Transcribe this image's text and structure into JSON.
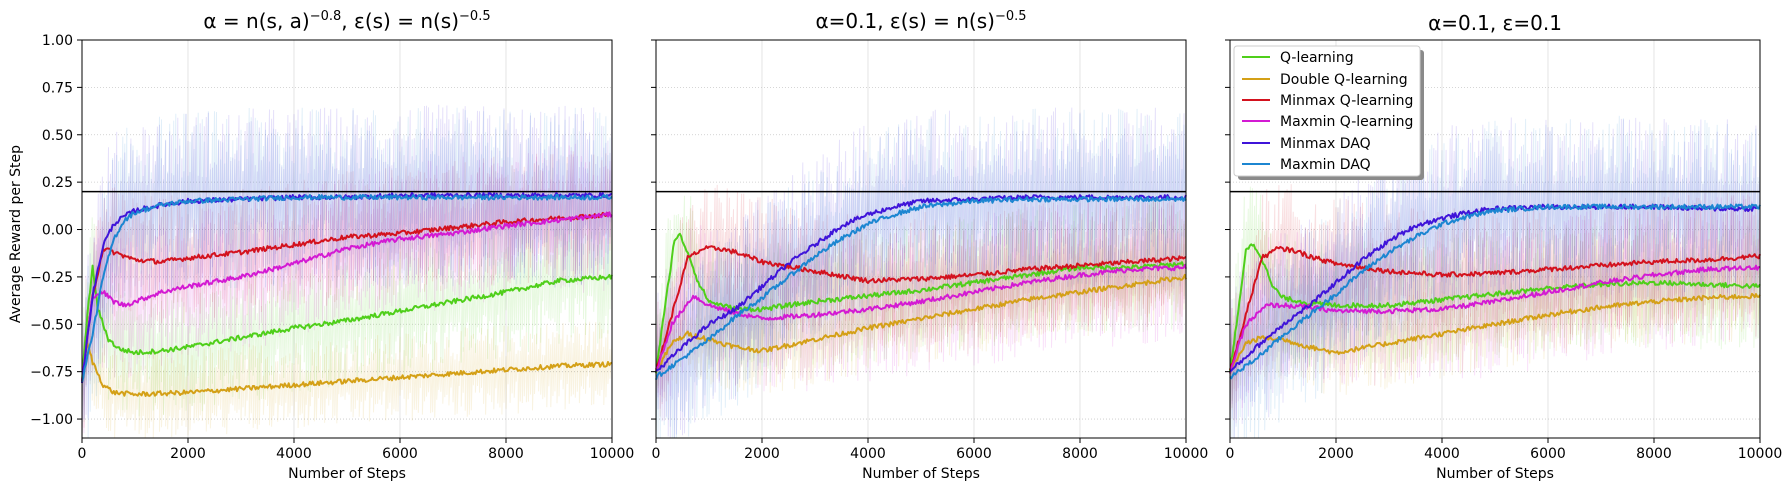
{
  "colors": {
    "q_learning": "#4fcf1a",
    "double_q_learning": "#d4a017",
    "minmax_q_learning": "#d3121e",
    "maxmin_q_learning": "#d31ad3",
    "minmax_daq": "#3f14d9",
    "maxmin_daq": "#1c86d1",
    "optimal_line": "#000000"
  },
  "legend": {
    "entries": [
      {
        "key": "q_learning",
        "label": "Q-learning"
      },
      {
        "key": "double_q_learning",
        "label": "Double Q-learning"
      },
      {
        "key": "minmax_q_learning",
        "label": "Minmax Q-learning"
      },
      {
        "key": "maxmin_q_learning",
        "label": "Maxmin Q-learning"
      },
      {
        "key": "minmax_daq",
        "label": "Minmax DAQ"
      },
      {
        "key": "maxmin_daq",
        "label": "Maxmin DAQ"
      }
    ]
  },
  "chart_data": [
    {
      "type": "line",
      "title": "α = n(s, a)^−0.8, ε(s) = n(s)^−0.5",
      "title_parts": {
        "a": "α = n(s, a)",
        "a_sup": "−0.8",
        "b": ", ε(s) = n(s)",
        "b_sup": "−0.5"
      },
      "xlabel": "Number of Steps",
      "ylabel": "Average Reward per Step",
      "xlim": [
        0,
        10000
      ],
      "ylim": [
        -1.1,
        1.0
      ],
      "xticks": [
        0,
        2000,
        4000,
        6000,
        8000,
        10000
      ],
      "xtick_labels": [
        "0",
        "2000",
        "4000",
        "6000",
        "8000",
        "10000"
      ],
      "yticks": [
        1.0,
        0.75,
        0.5,
        0.25,
        0.0,
        -0.25,
        -0.5,
        -0.75,
        -1.0
      ],
      "ytick_labels": [
        "1.00",
        "0.75",
        "0.50",
        "0.25",
        "0.00",
        "−0.25",
        "−0.50",
        "−0.75",
        "−1.00"
      ],
      "grid": true,
      "reference_line": 0.2,
      "series": [
        {
          "key": "q_learning",
          "name": "Q-learning",
          "x": [
            0,
            100,
            200,
            300,
            500,
            700,
            1000,
            1500,
            2000,
            3000,
            4000,
            5000,
            6000,
            7000,
            8000,
            9000,
            10000
          ],
          "y": [
            -0.8,
            -0.45,
            -0.2,
            -0.42,
            -0.58,
            -0.63,
            -0.65,
            -0.64,
            -0.62,
            -0.57,
            -0.52,
            -0.48,
            -0.43,
            -0.38,
            -0.33,
            -0.27,
            -0.25
          ]
        },
        {
          "key": "double_q_learning",
          "name": "Double Q-learning",
          "x": [
            0,
            100,
            200,
            400,
            600,
            1000,
            2000,
            3000,
            4000,
            5000,
            6000,
            7000,
            8000,
            9000,
            10000
          ],
          "y": [
            -0.8,
            -0.6,
            -0.7,
            -0.82,
            -0.86,
            -0.87,
            -0.86,
            -0.84,
            -0.82,
            -0.8,
            -0.78,
            -0.76,
            -0.74,
            -0.72,
            -0.71
          ]
        },
        {
          "key": "minmax_q_learning",
          "name": "Minmax Q-learning",
          "x": [
            0,
            200,
            400,
            600,
            1000,
            1500,
            2000,
            3000,
            4000,
            5000,
            6000,
            7000,
            8000,
            9000,
            10000
          ],
          "y": [
            -0.8,
            -0.35,
            -0.1,
            -0.12,
            -0.16,
            -0.17,
            -0.15,
            -0.12,
            -0.08,
            -0.04,
            -0.02,
            0.01,
            0.04,
            0.06,
            0.08
          ]
        },
        {
          "key": "maxmin_q_learning",
          "name": "Maxmin Q-learning",
          "x": [
            0,
            200,
            400,
            600,
            800,
            1000,
            1500,
            2000,
            3000,
            4000,
            5000,
            6000,
            7000,
            8000,
            9000,
            10000
          ],
          "y": [
            -0.8,
            -0.35,
            -0.33,
            -0.38,
            -0.4,
            -0.38,
            -0.33,
            -0.3,
            -0.25,
            -0.18,
            -0.1,
            -0.05,
            -0.02,
            0.02,
            0.05,
            0.08
          ]
        },
        {
          "key": "minmax_daq",
          "name": "Minmax DAQ",
          "x": [
            0,
            200,
            400,
            600,
            800,
            1000,
            1500,
            2000,
            3000,
            4000,
            5000,
            6000,
            7000,
            8000,
            9000,
            10000
          ],
          "y": [
            -0.8,
            -0.35,
            -0.08,
            0.03,
            0.07,
            0.1,
            0.13,
            0.15,
            0.16,
            0.17,
            0.17,
            0.18,
            0.18,
            0.18,
            0.18,
            0.18
          ]
        },
        {
          "key": "maxmin_daq",
          "name": "Maxmin DAQ",
          "x": [
            0,
            200,
            400,
            600,
            800,
            1000,
            1500,
            2000,
            3000,
            4000,
            5000,
            6000,
            7000,
            8000,
            9000,
            10000
          ],
          "y": [
            -0.8,
            -0.55,
            -0.25,
            -0.05,
            0.05,
            0.09,
            0.13,
            0.15,
            0.16,
            0.17,
            0.17,
            0.17,
            0.17,
            0.17,
            0.17,
            0.17
          ]
        }
      ]
    },
    {
      "type": "line",
      "title": "α=0.1, ε(s) = n(s)^−0.5",
      "title_parts": {
        "a": "α=0.1, ε(s) = n(s)",
        "a_sup": "−0.5",
        "b": "",
        "b_sup": ""
      },
      "xlabel": "Number of Steps",
      "ylabel": "",
      "xlim": [
        0,
        10000
      ],
      "ylim": [
        -1.1,
        1.0
      ],
      "xticks": [
        0,
        2000,
        4000,
        6000,
        8000,
        10000
      ],
      "xtick_labels": [
        "0",
        "2000",
        "4000",
        "6000",
        "8000",
        "10000"
      ],
      "yticks": [
        1.0,
        0.75,
        0.5,
        0.25,
        0.0,
        -0.25,
        -0.5,
        -0.75,
        -1.0
      ],
      "ytick_labels": [],
      "grid": true,
      "reference_line": 0.2,
      "series": [
        {
          "key": "q_learning",
          "name": "Q-learning",
          "x": [
            0,
            200,
            350,
            450,
            600,
            800,
            1000,
            1500,
            2000,
            3000,
            4000,
            5000,
            6000,
            7000,
            8000,
            9000,
            10000
          ],
          "y": [
            -0.75,
            -0.35,
            -0.05,
            -0.03,
            -0.12,
            -0.28,
            -0.38,
            -0.42,
            -0.42,
            -0.38,
            -0.35,
            -0.32,
            -0.28,
            -0.24,
            -0.2,
            -0.2,
            -0.18
          ]
        },
        {
          "key": "double_q_learning",
          "name": "Double Q-learning",
          "x": [
            0,
            300,
            600,
            1000,
            1500,
            2000,
            3000,
            4000,
            5000,
            6000,
            7000,
            8000,
            9000,
            10000
          ],
          "y": [
            -0.75,
            -0.6,
            -0.55,
            -0.58,
            -0.62,
            -0.64,
            -0.58,
            -0.52,
            -0.47,
            -0.42,
            -0.37,
            -0.33,
            -0.29,
            -0.25
          ]
        },
        {
          "key": "minmax_q_learning",
          "name": "Minmax Q-learning",
          "x": [
            0,
            300,
            600,
            900,
            1200,
            1500,
            2000,
            3000,
            4000,
            5000,
            6000,
            7000,
            8000,
            9000,
            10000
          ],
          "y": [
            -0.75,
            -0.45,
            -0.15,
            -0.1,
            -0.1,
            -0.12,
            -0.17,
            -0.22,
            -0.27,
            -0.26,
            -0.24,
            -0.21,
            -0.19,
            -0.17,
            -0.15
          ]
        },
        {
          "key": "maxmin_q_learning",
          "name": "Maxmin Q-learning",
          "x": [
            0,
            300,
            700,
            1000,
            1500,
            2000,
            3000,
            4000,
            5000,
            6000,
            7000,
            8000,
            9000,
            10000
          ],
          "y": [
            -0.75,
            -0.5,
            -0.35,
            -0.4,
            -0.44,
            -0.47,
            -0.45,
            -0.42,
            -0.38,
            -0.33,
            -0.28,
            -0.24,
            -0.21,
            -0.2
          ]
        },
        {
          "key": "minmax_daq",
          "name": "Minmax DAQ",
          "x": [
            0,
            500,
            1000,
            1500,
            2000,
            2500,
            3000,
            3500,
            4000,
            4500,
            5000,
            6000,
            7000,
            8000,
            9000,
            10000
          ],
          "y": [
            -0.75,
            -0.62,
            -0.5,
            -0.42,
            -0.3,
            -0.18,
            -0.08,
            0.02,
            0.08,
            0.12,
            0.15,
            0.16,
            0.17,
            0.17,
            0.17,
            0.17
          ]
        },
        {
          "key": "maxmin_daq",
          "name": "Maxmin DAQ",
          "x": [
            0,
            500,
            1000,
            1500,
            2000,
            2500,
            3000,
            3500,
            4000,
            4500,
            5000,
            6000,
            7000,
            8000,
            9000,
            10000
          ],
          "y": [
            -0.78,
            -0.68,
            -0.58,
            -0.46,
            -0.36,
            -0.25,
            -0.14,
            -0.05,
            0.03,
            0.08,
            0.12,
            0.15,
            0.16,
            0.16,
            0.16,
            0.16
          ]
        }
      ]
    },
    {
      "type": "line",
      "title": "α=0.1, ε=0.1",
      "title_parts": {
        "a": "α=0.1, ε=0.1",
        "a_sup": "",
        "b": "",
        "b_sup": ""
      },
      "xlabel": "Number of Steps",
      "ylabel": "",
      "xlim": [
        0,
        10000
      ],
      "ylim": [
        -1.1,
        1.0
      ],
      "xticks": [
        0,
        2000,
        4000,
        6000,
        8000,
        10000
      ],
      "xtick_labels": [
        "0",
        "2000",
        "4000",
        "6000",
        "8000",
        "10000"
      ],
      "yticks": [
        1.0,
        0.75,
        0.5,
        0.25,
        0.0,
        -0.25,
        -0.5,
        -0.75,
        -1.0
      ],
      "ytick_labels": [],
      "grid": true,
      "reference_line": 0.2,
      "legend_position": "upper-left",
      "series": [
        {
          "key": "q_learning",
          "name": "Q-learning",
          "x": [
            0,
            150,
            300,
            450,
            600,
            800,
            1000,
            1500,
            2000,
            3000,
            4000,
            5000,
            6000,
            7000,
            8000,
            9000,
            10000
          ],
          "y": [
            -0.75,
            -0.45,
            -0.1,
            -0.08,
            -0.15,
            -0.3,
            -0.36,
            -0.39,
            -0.4,
            -0.4,
            -0.37,
            -0.34,
            -0.31,
            -0.29,
            -0.28,
            -0.29,
            -0.3
          ]
        },
        {
          "key": "double_q_learning",
          "name": "Double Q-learning",
          "x": [
            0,
            300,
            600,
            1000,
            1500,
            2000,
            3000,
            4000,
            5000,
            6000,
            7000,
            8000,
            9000,
            10000
          ],
          "y": [
            -0.75,
            -0.6,
            -0.57,
            -0.58,
            -0.62,
            -0.65,
            -0.6,
            -0.55,
            -0.5,
            -0.45,
            -0.41,
            -0.38,
            -0.36,
            -0.35
          ]
        },
        {
          "key": "minmax_q_learning",
          "name": "Minmax Q-learning",
          "x": [
            0,
            300,
            600,
            900,
            1200,
            1600,
            2000,
            3000,
            4000,
            5000,
            6000,
            7000,
            8000,
            9000,
            10000
          ],
          "y": [
            -0.75,
            -0.45,
            -0.15,
            -0.1,
            -0.11,
            -0.15,
            -0.18,
            -0.22,
            -0.24,
            -0.23,
            -0.21,
            -0.19,
            -0.17,
            -0.16,
            -0.14
          ]
        },
        {
          "key": "maxmin_q_learning",
          "name": "Maxmin Q-learning",
          "x": [
            0,
            300,
            700,
            1000,
            1500,
            2000,
            3000,
            4000,
            5000,
            6000,
            7000,
            8000,
            9000,
            10000
          ],
          "y": [
            -0.75,
            -0.5,
            -0.4,
            -0.4,
            -0.41,
            -0.43,
            -0.43,
            -0.42,
            -0.38,
            -0.33,
            -0.28,
            -0.24,
            -0.21,
            -0.2
          ]
        },
        {
          "key": "minmax_daq",
          "name": "Minmax DAQ",
          "x": [
            0,
            500,
            1000,
            1500,
            2000,
            2500,
            3000,
            3500,
            4000,
            4500,
            5000,
            6000,
            7000,
            8000,
            9000,
            10000
          ],
          "y": [
            -0.75,
            -0.62,
            -0.5,
            -0.4,
            -0.28,
            -0.16,
            -0.06,
            0.02,
            0.06,
            0.09,
            0.11,
            0.12,
            0.12,
            0.12,
            0.11,
            0.11
          ]
        },
        {
          "key": "maxmin_daq",
          "name": "Maxmin DAQ",
          "x": [
            0,
            500,
            1000,
            1500,
            2000,
            2500,
            3000,
            3500,
            4000,
            4500,
            5000,
            6000,
            7000,
            8000,
            9000,
            10000
          ],
          "y": [
            -0.78,
            -0.68,
            -0.56,
            -0.45,
            -0.34,
            -0.22,
            -0.12,
            -0.04,
            0.03,
            0.07,
            0.1,
            0.12,
            0.12,
            0.12,
            0.12,
            0.12
          ]
        }
      ]
    }
  ]
}
